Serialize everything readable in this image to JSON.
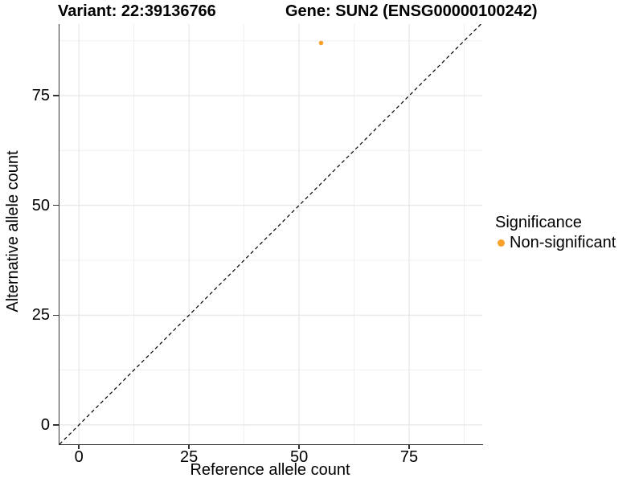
{
  "titles": {
    "variant": "Variant: 22:39136766",
    "gene": "Gene: SUN2 (ENSG00000100242)"
  },
  "axes": {
    "x_label": "Reference allele count",
    "y_label": "Alternative allele count"
  },
  "legend": {
    "title": "Significance",
    "items": [
      {
        "label": "Non-significant",
        "color": "#F9A12B"
      }
    ]
  },
  "colors": {
    "background": "#ffffff",
    "axis_line": "#333333",
    "major_grid": "#e4e4e4",
    "minor_grid": "#f0f0f0",
    "identity_line": "#000000",
    "point": "#F9A12B"
  },
  "chart_data": {
    "type": "scatter",
    "title": "Variant: 22:39136766 | Gene: SUN2 (ENSG00000100242)",
    "xlabel": "Reference allele count",
    "ylabel": "Alternative allele count",
    "xlim": [
      -4.6,
      91.6
    ],
    "ylim": [
      -4.4,
      91.3
    ],
    "x_ticks": [
      0,
      25,
      50,
      75
    ],
    "y_ticks": [
      0,
      25,
      50,
      75
    ],
    "x_minor_ticks": [
      12.5,
      37.5,
      62.5,
      87.5
    ],
    "y_minor_ticks": [
      12.5,
      37.5,
      62.5,
      87.5
    ],
    "grid": true,
    "legend_position": "right",
    "series": [
      {
        "name": "Non-significant",
        "color": "#F9A12B",
        "points": [
          {
            "x": 55,
            "y": 87
          }
        ]
      }
    ],
    "reference_line": {
      "type": "identity",
      "equation": "y = x",
      "style": "dashed",
      "color": "#000000"
    }
  }
}
